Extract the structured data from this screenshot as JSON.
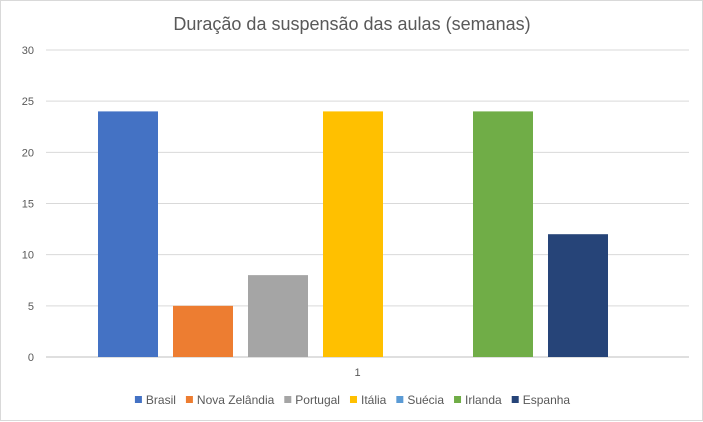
{
  "chart_data": {
    "type": "bar",
    "title": "Duração da suspensão das aulas (semanas)",
    "categories": [
      "1"
    ],
    "series": [
      {
        "name": "Brasil",
        "values": [
          24
        ],
        "color": "#4472C4"
      },
      {
        "name": "Nova Zelândia",
        "values": [
          5
        ],
        "color": "#ED7D31"
      },
      {
        "name": "Portugal",
        "values": [
          8
        ],
        "color": "#A5A5A5"
      },
      {
        "name": "Itália",
        "values": [
          24
        ],
        "color": "#FFC000"
      },
      {
        "name": "Suécia",
        "values": [
          0
        ],
        "color": "#5B9BD5"
      },
      {
        "name": "Irlanda",
        "values": [
          24
        ],
        "color": "#70AD47"
      },
      {
        "name": "Espanha",
        "values": [
          12
        ],
        "color": "#264478"
      }
    ],
    "ylim": [
      0,
      30
    ],
    "yticks": [
      "0",
      "5",
      "10",
      "15",
      "20",
      "25",
      "30"
    ],
    "grid": true,
    "legend_position": "bottom"
  }
}
